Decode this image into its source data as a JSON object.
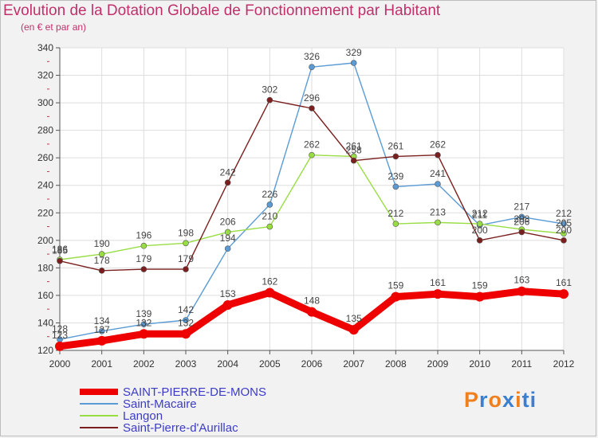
{
  "chart_data": {
    "type": "line",
    "title": "Evolution de la Dotation Globale de Fonctionnement par Habitant",
    "subtitle": "(en € et par an)",
    "xlabel": "",
    "ylabel": "",
    "categories": [
      "2000",
      "2001",
      "2002",
      "2003",
      "2004",
      "2005",
      "2006",
      "2007",
      "2008",
      "2009",
      "2010",
      "2011",
      "2012"
    ],
    "ylim": [
      120,
      340
    ],
    "yticks": [
      120,
      140,
      160,
      180,
      200,
      220,
      240,
      260,
      280,
      300,
      320,
      340
    ],
    "grid": true,
    "legend_position": "bottom-left",
    "series": [
      {
        "name": "SAINT-PIERRE-DE-MONS",
        "color": "#ee0000",
        "values": [
          123,
          127,
          132,
          132,
          153,
          162,
          148,
          135,
          159,
          161,
          159,
          163,
          161
        ]
      },
      {
        "name": "Saint-Macaire",
        "color": "#5b9bd5",
        "values": [
          128,
          134,
          139,
          142,
          194,
          226,
          326,
          329,
          239,
          241,
          211,
          217,
          212
        ]
      },
      {
        "name": "Langon",
        "color": "#99dd44",
        "values": [
          186,
          190,
          196,
          198,
          206,
          210,
          262,
          261,
          212,
          213,
          212,
          208,
          205
        ]
      },
      {
        "name": "Saint-Pierre-d'Aurillac",
        "color": "#7b1e1e",
        "values": [
          185,
          178,
          179,
          179,
          242,
          302,
          296,
          258,
          261,
          262,
          200,
          206,
          200
        ]
      }
    ]
  },
  "brand": {
    "text": "Proxiti",
    "colors": [
      "#f0801e",
      "#3a7fd0",
      "#f0801e",
      "#3a7fd0",
      "#f0801e",
      "#3a7fd0",
      "#3a7fd0"
    ]
  }
}
